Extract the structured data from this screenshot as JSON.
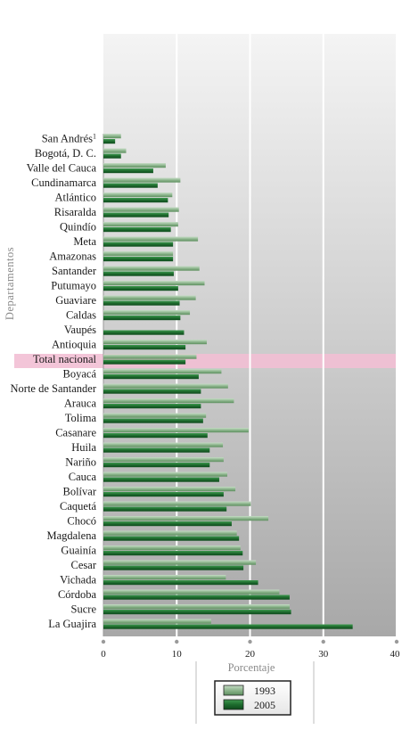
{
  "chart_data": {
    "type": "bar",
    "orientation": "horizontal",
    "ylabel": "Departamentos",
    "xlabel": "Porcentaje",
    "xlim": [
      0,
      40
    ],
    "xticks": [
      0,
      10,
      20,
      30,
      40
    ],
    "grid": true,
    "legend": "bottom-center",
    "highlight_category": "Total nacional",
    "colors": {
      "1993": "#8db58d",
      "2005": "#1e6b2e",
      "highlight": "#f2bfd4"
    },
    "categories": [
      "San Andrés",
      "Bogotá, D. C.",
      "Valle del Cauca",
      "Cundinamarca",
      "Atlántico",
      "Risaralda",
      "Quindío",
      "Meta",
      "Amazonas",
      "Santander",
      "Putumayo",
      "Guaviare",
      "Caldas",
      "Vaupés",
      "Antioquia",
      "Total nacional",
      "Boyacá",
      "Norte de Santander",
      "Arauca",
      "Tolima",
      "Casanare",
      "Huila",
      "Nariño",
      "Cauca",
      "Bolívar",
      "Caquetá",
      "Chocó",
      "Magdalena",
      "Guainía",
      "Cesar",
      "Vichada",
      "Córdoba",
      "Sucre",
      "La Guajira"
    ],
    "category_notes": {
      "San Andrés": "1"
    },
    "series": [
      {
        "name": "1993",
        "values": [
          2.4,
          3.1,
          8.5,
          10.5,
          9.4,
          10.3,
          10.2,
          12.9,
          9.5,
          13.1,
          13.8,
          12.6,
          11.8,
          0.0,
          14.1,
          12.7,
          16.1,
          17.0,
          17.8,
          14.0,
          19.8,
          16.3,
          16.4,
          16.9,
          18.0,
          20.1,
          22.5,
          18.2,
          18.7,
          20.8,
          16.7,
          24.0,
          25.4,
          14.7
        ]
      },
      {
        "name": "2005",
        "values": [
          1.6,
          2.4,
          6.8,
          7.4,
          8.8,
          8.9,
          9.2,
          9.5,
          9.5,
          9.6,
          10.2,
          10.4,
          10.5,
          11.0,
          11.2,
          11.2,
          13.0,
          13.3,
          13.3,
          13.6,
          14.2,
          14.5,
          14.5,
          15.8,
          16.4,
          16.8,
          17.5,
          18.5,
          19.0,
          19.1,
          21.1,
          25.4,
          25.6,
          34.0
        ]
      }
    ]
  },
  "legend": {
    "title": "Porcentaje",
    "labels": [
      "1993",
      "2005"
    ]
  }
}
